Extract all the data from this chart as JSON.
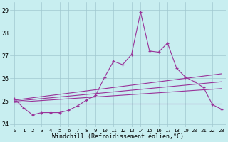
{
  "xlabel": "Windchill (Refroidissement éolien,°C)",
  "background_color": "#c8eef0",
  "grid_color": "#a0c8d0",
  "line_color": "#993399",
  "xlim": [
    -0.5,
    23.5
  ],
  "ylim": [
    23.85,
    29.35
  ],
  "yticks": [
    24,
    25,
    26,
    27,
    28,
    29
  ],
  "xticks": [
    0,
    1,
    2,
    3,
    4,
    5,
    6,
    7,
    8,
    9,
    10,
    11,
    12,
    13,
    14,
    15,
    16,
    17,
    18,
    19,
    20,
    21,
    22,
    23
  ],
  "main_y": [
    25.1,
    24.7,
    24.4,
    24.5,
    24.5,
    24.5,
    24.6,
    24.8,
    25.05,
    25.25,
    26.05,
    26.75,
    26.6,
    27.05,
    28.9,
    27.2,
    27.15,
    27.55,
    26.45,
    26.05,
    25.85,
    25.6,
    24.85,
    24.65
  ],
  "trend_lines": [
    {
      "x0": 0,
      "y0": 25.05,
      "x1": 23,
      "y1": 26.2
    },
    {
      "x0": 0,
      "y0": 25.0,
      "x1": 23,
      "y1": 25.85
    },
    {
      "x0": 0,
      "y0": 24.95,
      "x1": 23,
      "y1": 25.55
    },
    {
      "x0": 0,
      "y0": 24.9,
      "x1": 23,
      "y1": 24.9
    }
  ],
  "figsize": [
    3.2,
    2.0
  ],
  "dpi": 100
}
